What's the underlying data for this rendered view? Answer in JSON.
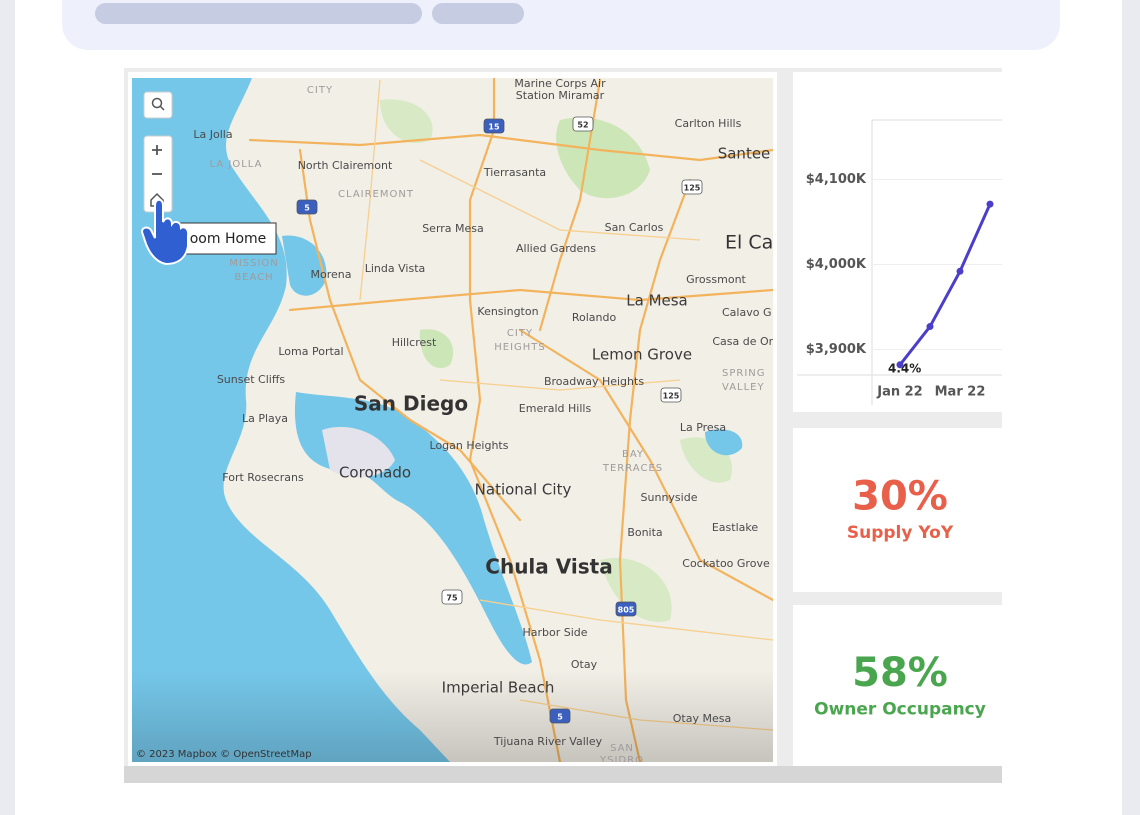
{
  "map": {
    "labels": [
      "CITY",
      "Marine Corps Air",
      "Station Miramar",
      "La Jolla",
      "LA JOLLA",
      "Carlton Hills",
      "Santee",
      "North Clairemont",
      "Tierrasanta",
      "CLAIREMONT",
      "Serra Mesa",
      "San Carlos",
      "Allied Gardens",
      "El Ca",
      "MISSION",
      "BEACH",
      "Morena",
      "Linda Vista",
      "Grossmont",
      "La Mesa",
      "Kensington",
      "Rolando",
      "Calavo G",
      "CITY",
      "HEIGHTS",
      "Casa de Oro",
      "Loma Portal",
      "Hillcrest",
      "Lemon Grove",
      "SPRING",
      "VALLEY",
      "Sunset Cliffs",
      "Broadway Heights",
      "San Diego",
      "Emerald Hills",
      "La Playa",
      "La Presa",
      "Logan Heights",
      "BAY",
      "TERRACES",
      "Coronado",
      "Fort Rosecrans",
      "National City",
      "Sunnyside",
      "Eastlake",
      "Bonita",
      "Chula Vista",
      "Cockatoo Grove",
      "Harbor Side",
      "Otay",
      "Imperial Beach",
      "Otay Mesa",
      "Tijuana River Valley",
      "SAN",
      "YSIDRO"
    ],
    "shields": [
      "15",
      "52",
      "125",
      "5",
      "125",
      "75",
      "805",
      "5"
    ],
    "attribution": "© 2023 Mapbox © OpenStreetMap",
    "tooltip": "oom Home"
  },
  "chart_data": {
    "type": "line",
    "categories": [
      "Jan 22",
      null,
      "Mar 22",
      null
    ],
    "series": [
      {
        "color": "#4b3fc9",
        "values": [
          3882,
          3927,
          3992,
          4071
        ]
      }
    ],
    "ylim": [
      3870,
      4170
    ],
    "yticks": [
      {
        "value": 3900,
        "label": "$3,900K"
      },
      {
        "value": 4000,
        "label": "$4,000K"
      },
      {
        "value": 4100,
        "label": "$4,100K"
      }
    ],
    "grid": true,
    "annotations": [
      "4.4%"
    ]
  },
  "kpis": [
    {
      "value": "30%",
      "label": "Supply YoY",
      "color": "#e8604a"
    },
    {
      "value": "58%",
      "label": "Owner Occupancy",
      "color": "#4aa64e"
    }
  ]
}
